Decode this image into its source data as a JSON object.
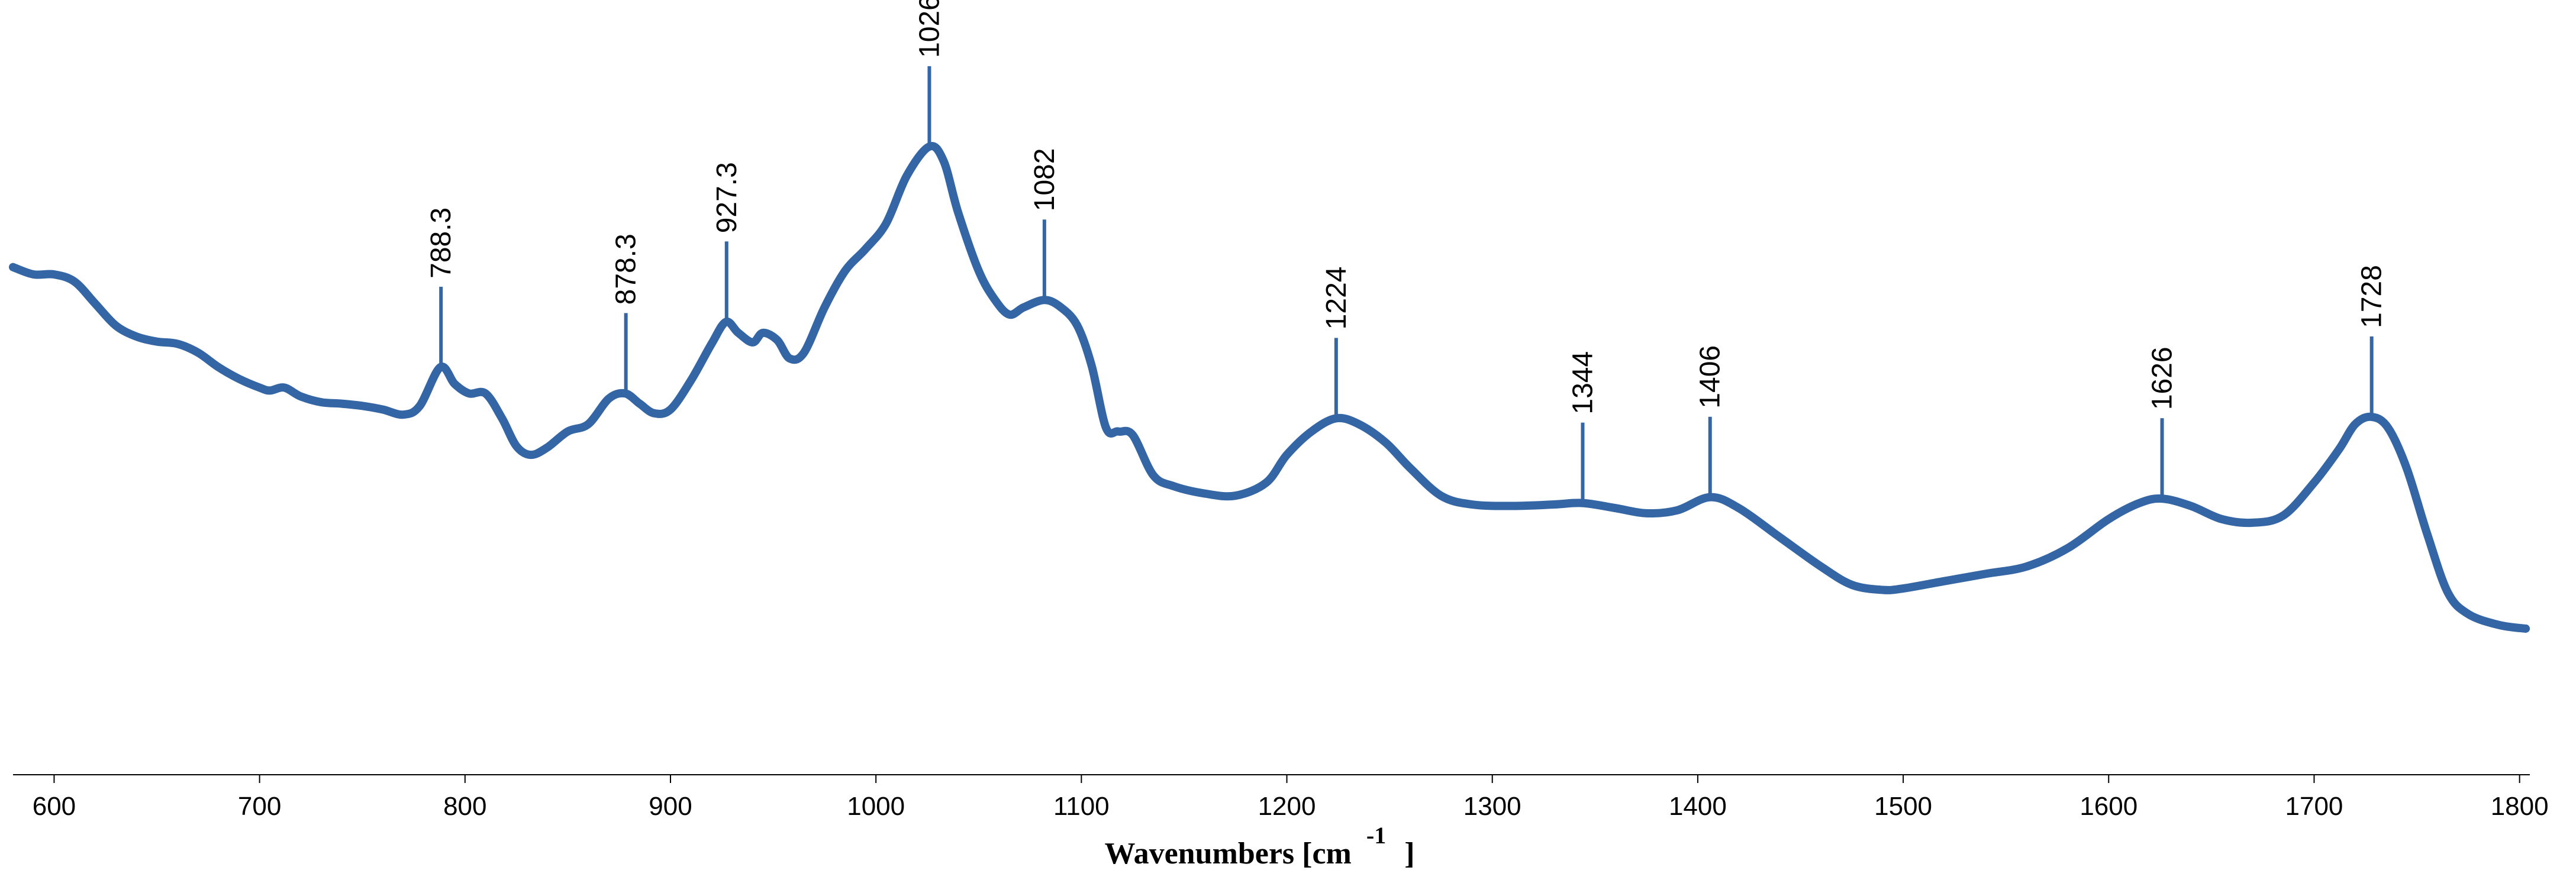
{
  "chart_data": {
    "type": "line",
    "title": "",
    "xlabel": "Wavenumbers [cm",
    "xlabel_superscript": "-1",
    "xlabel_close": "]",
    "ylabel": "",
    "xlim": [
      580,
      1805
    ],
    "ylim": [
      0,
      1
    ],
    "x_ticks": [
      600,
      700,
      800,
      900,
      1000,
      1100,
      1200,
      1300,
      1400,
      1500,
      1600,
      1700,
      1800
    ],
    "grid": false,
    "legend": "none",
    "line_color": "#3465a4",
    "series": [
      {
        "points": [
          [
            580,
            0.695
          ],
          [
            590,
            0.685
          ],
          [
            600,
            0.685
          ],
          [
            610,
            0.675
          ],
          [
            620,
            0.645
          ],
          [
            630,
            0.615
          ],
          [
            640,
            0.6
          ],
          [
            650,
            0.593
          ],
          [
            660,
            0.59
          ],
          [
            670,
            0.578
          ],
          [
            680,
            0.558
          ],
          [
            690,
            0.542
          ],
          [
            700,
            0.53
          ],
          [
            705,
            0.526
          ],
          [
            712,
            0.53
          ],
          [
            720,
            0.518
          ],
          [
            730,
            0.51
          ],
          [
            740,
            0.508
          ],
          [
            750,
            0.505
          ],
          [
            760,
            0.5
          ],
          [
            770,
            0.493
          ],
          [
            778,
            0.505
          ],
          [
            788,
            0.558
          ],
          [
            795,
            0.535
          ],
          [
            802,
            0.522
          ],
          [
            810,
            0.522
          ],
          [
            818,
            0.488
          ],
          [
            825,
            0.45
          ],
          [
            832,
            0.438
          ],
          [
            840,
            0.448
          ],
          [
            850,
            0.47
          ],
          [
            860,
            0.48
          ],
          [
            870,
            0.515
          ],
          [
            878,
            0.522
          ],
          [
            885,
            0.508
          ],
          [
            892,
            0.495
          ],
          [
            900,
            0.5
          ],
          [
            910,
            0.54
          ],
          [
            920,
            0.59
          ],
          [
            927,
            0.62
          ],
          [
            933,
            0.605
          ],
          [
            940,
            0.592
          ],
          [
            945,
            0.605
          ],
          [
            952,
            0.595
          ],
          [
            958,
            0.57
          ],
          [
            965,
            0.578
          ],
          [
            975,
            0.64
          ],
          [
            985,
            0.69
          ],
          [
            995,
            0.72
          ],
          [
            1005,
            0.755
          ],
          [
            1015,
            0.82
          ],
          [
            1026,
            0.86
          ],
          [
            1033,
            0.84
          ],
          [
            1040,
            0.77
          ],
          [
            1050,
            0.69
          ],
          [
            1058,
            0.65
          ],
          [
            1065,
            0.63
          ],
          [
            1072,
            0.64
          ],
          [
            1082,
            0.65
          ],
          [
            1090,
            0.64
          ],
          [
            1098,
            0.615
          ],
          [
            1105,
            0.56
          ],
          [
            1112,
            0.475
          ],
          [
            1118,
            0.47
          ],
          [
            1125,
            0.465
          ],
          [
            1135,
            0.41
          ],
          [
            1145,
            0.395
          ],
          [
            1160,
            0.385
          ],
          [
            1175,
            0.382
          ],
          [
            1190,
            0.4
          ],
          [
            1200,
            0.438
          ],
          [
            1212,
            0.47
          ],
          [
            1224,
            0.488
          ],
          [
            1235,
            0.48
          ],
          [
            1248,
            0.455
          ],
          [
            1260,
            0.42
          ],
          [
            1275,
            0.382
          ],
          [
            1290,
            0.37
          ],
          [
            1310,
            0.368
          ],
          [
            1330,
            0.37
          ],
          [
            1344,
            0.372
          ],
          [
            1360,
            0.365
          ],
          [
            1375,
            0.358
          ],
          [
            1390,
            0.362
          ],
          [
            1406,
            0.38
          ],
          [
            1420,
            0.365
          ],
          [
            1440,
            0.325
          ],
          [
            1460,
            0.285
          ],
          [
            1475,
            0.26
          ],
          [
            1490,
            0.253
          ],
          [
            1500,
            0.255
          ],
          [
            1520,
            0.265
          ],
          [
            1540,
            0.275
          ],
          [
            1560,
            0.285
          ],
          [
            1580,
            0.31
          ],
          [
            1600,
            0.35
          ],
          [
            1615,
            0.372
          ],
          [
            1626,
            0.378
          ],
          [
            1640,
            0.368
          ],
          [
            1655,
            0.35
          ],
          [
            1670,
            0.345
          ],
          [
            1685,
            0.355
          ],
          [
            1700,
            0.4
          ],
          [
            1712,
            0.445
          ],
          [
            1720,
            0.48
          ],
          [
            1728,
            0.49
          ],
          [
            1736,
            0.475
          ],
          [
            1745,
            0.42
          ],
          [
            1755,
            0.33
          ],
          [
            1765,
            0.25
          ],
          [
            1775,
            0.22
          ],
          [
            1790,
            0.205
          ],
          [
            1803,
            0.2
          ]
        ]
      }
    ],
    "peaks": [
      {
        "x": 788.3,
        "y": 0.558,
        "label": "788.3"
      },
      {
        "x": 878.3,
        "y": 0.522,
        "label": "878.3"
      },
      {
        "x": 927.3,
        "y": 0.62,
        "label": "927.3"
      },
      {
        "x": 1026,
        "y": 0.86,
        "label": "1026"
      },
      {
        "x": 1082,
        "y": 0.65,
        "label": "1082"
      },
      {
        "x": 1224,
        "y": 0.488,
        "label": "1224"
      },
      {
        "x": 1344,
        "y": 0.372,
        "label": "1344"
      },
      {
        "x": 1406,
        "y": 0.38,
        "label": "1406"
      },
      {
        "x": 1626,
        "y": 0.378,
        "label": "1626"
      },
      {
        "x": 1728,
        "y": 0.49,
        "label": "1728"
      }
    ]
  }
}
